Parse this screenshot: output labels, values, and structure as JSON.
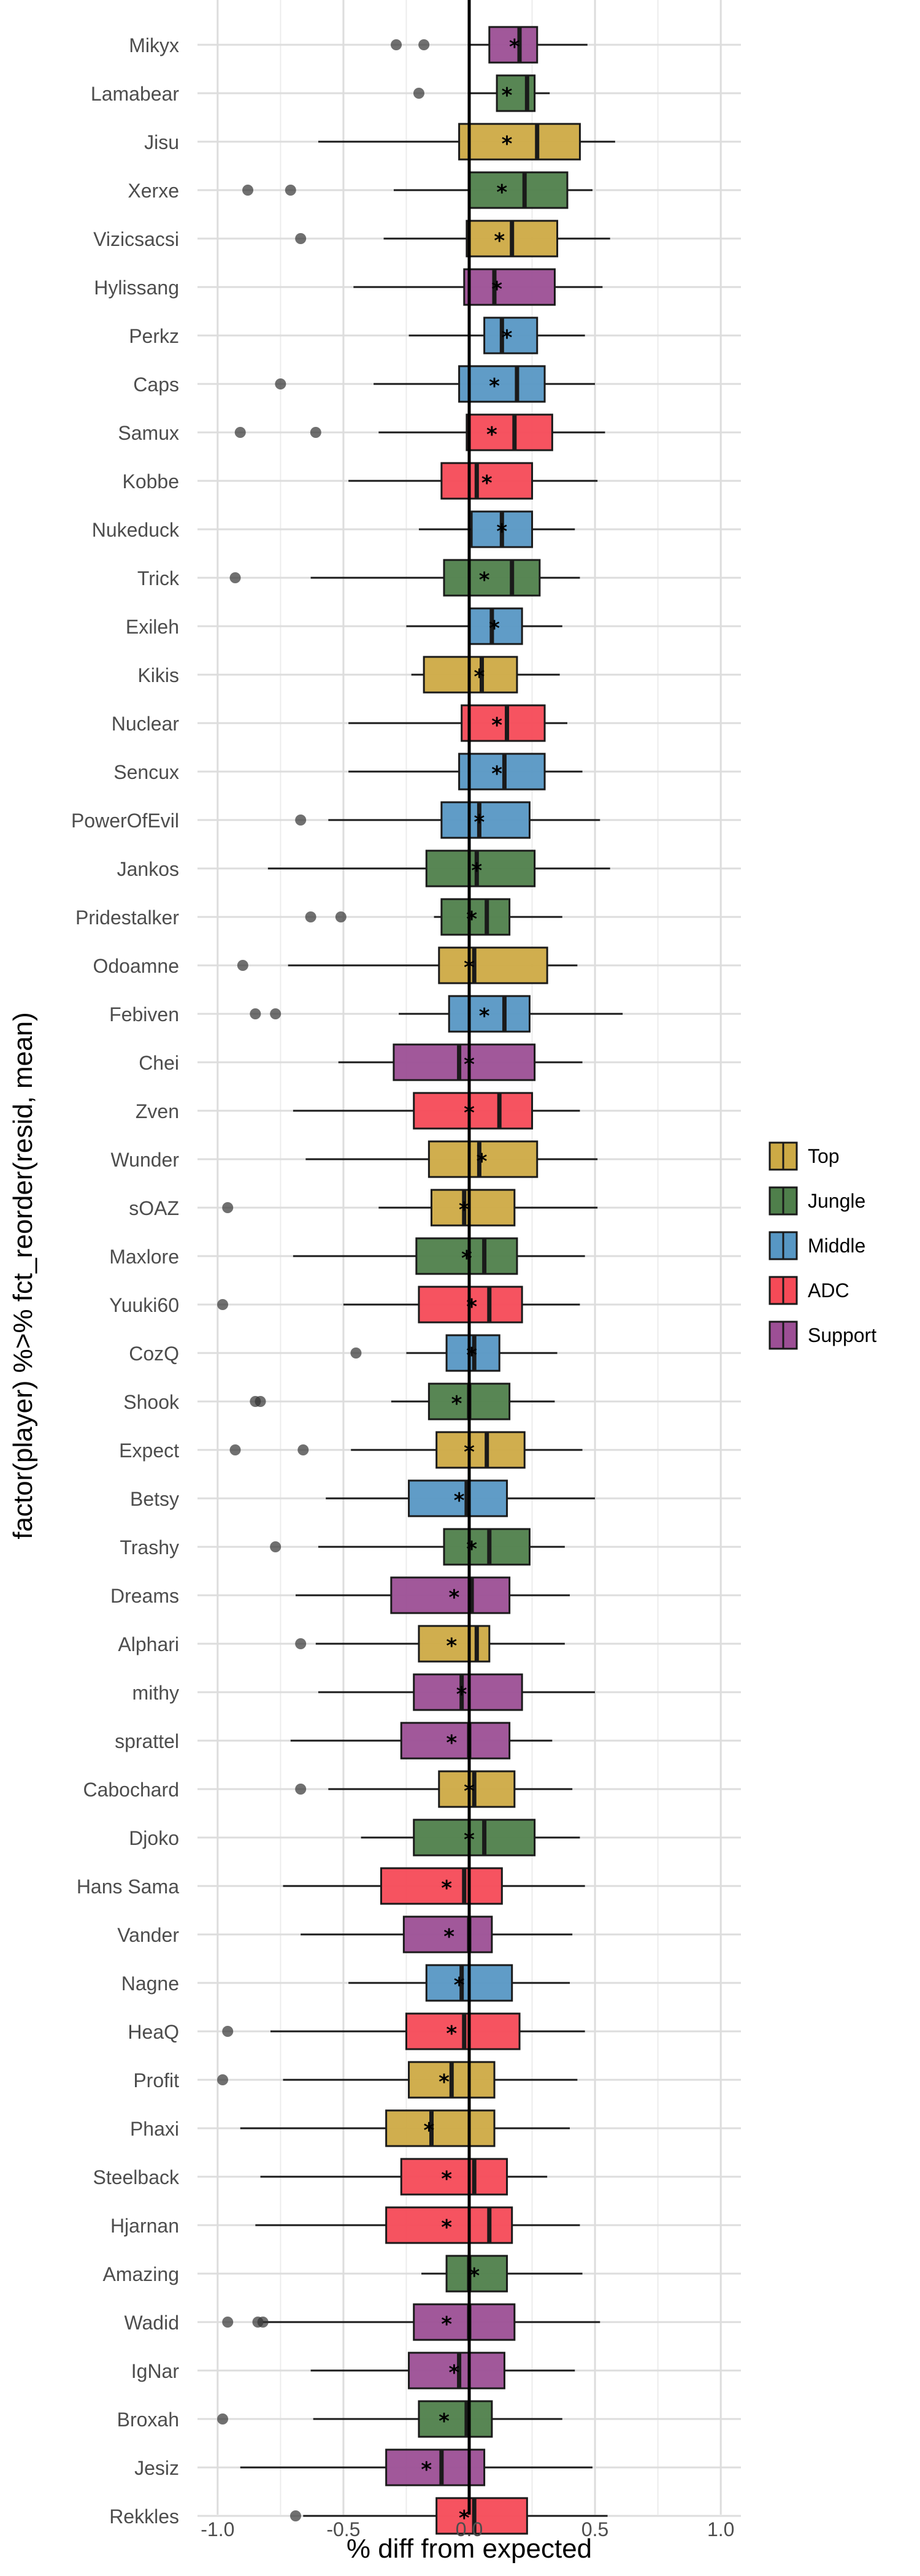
{
  "chart_data": {
    "type": "boxplot",
    "xlabel": "% diff from expected",
    "ylabel": "factor(player) %>% fct_reorder(resid, mean)",
    "xlim": [
      -1.08,
      1.08
    ],
    "x_ticks": [
      -1.0,
      -0.5,
      0.0,
      0.5,
      1.0
    ],
    "x_tick_labels": [
      "-1.0",
      "-0.5",
      "0.0",
      "0.5",
      "1.0"
    ],
    "grid": true,
    "reference_line_x": 0,
    "legend": {
      "placement": "right",
      "entries": [
        "Top",
        "Jungle",
        "Middle",
        "ADC",
        "Support"
      ]
    },
    "colors": {
      "Top": "#CDAA45",
      "Jungle": "#4F7F4B",
      "Middle": "#5797C4",
      "ADC": "#F54A57",
      "Support": "#9C4F95"
    },
    "players": [
      {
        "name": "Mikyx",
        "role": "Support",
        "whisker_low": 0.0,
        "q1": 0.08,
        "median": 0.2,
        "q3": 0.27,
        "whisker_high": 0.47,
        "mean": 0.18,
        "outliers": [
          -0.29,
          -0.18
        ]
      },
      {
        "name": "Lamabear",
        "role": "Jungle",
        "whisker_low": 0.0,
        "q1": 0.11,
        "median": 0.23,
        "q3": 0.26,
        "whisker_high": 0.32,
        "mean": 0.15,
        "outliers": [
          -0.2
        ]
      },
      {
        "name": "Jisu",
        "role": "Top",
        "whisker_low": -0.6,
        "q1": -0.04,
        "median": 0.27,
        "q3": 0.44,
        "whisker_high": 0.58,
        "mean": 0.15,
        "outliers": []
      },
      {
        "name": "Xerxe",
        "role": "Jungle",
        "whisker_low": -0.3,
        "q1": 0.0,
        "median": 0.22,
        "q3": 0.39,
        "whisker_high": 0.49,
        "mean": 0.13,
        "outliers": [
          -0.88,
          -0.71
        ]
      },
      {
        "name": "Vizicsacsi",
        "role": "Top",
        "whisker_low": -0.34,
        "q1": -0.01,
        "median": 0.17,
        "q3": 0.35,
        "whisker_high": 0.56,
        "mean": 0.12,
        "outliers": [
          -0.67
        ]
      },
      {
        "name": "Hylissang",
        "role": "Support",
        "whisker_low": -0.46,
        "q1": -0.02,
        "median": 0.1,
        "q3": 0.34,
        "whisker_high": 0.53,
        "mean": 0.11,
        "outliers": []
      },
      {
        "name": "Perkz",
        "role": "Middle",
        "whisker_low": -0.24,
        "q1": 0.06,
        "median": 0.13,
        "q3": 0.27,
        "whisker_high": 0.46,
        "mean": 0.15,
        "outliers": []
      },
      {
        "name": "Caps",
        "role": "Middle",
        "whisker_low": -0.38,
        "q1": -0.04,
        "median": 0.19,
        "q3": 0.3,
        "whisker_high": 0.5,
        "mean": 0.1,
        "outliers": [
          -0.75
        ]
      },
      {
        "name": "Samux",
        "role": "ADC",
        "whisker_low": -0.36,
        "q1": -0.01,
        "median": 0.18,
        "q3": 0.33,
        "whisker_high": 0.54,
        "mean": 0.09,
        "outliers": [
          -0.91,
          -0.61
        ]
      },
      {
        "name": "Kobbe",
        "role": "ADC",
        "whisker_low": -0.48,
        "q1": -0.11,
        "median": 0.03,
        "q3": 0.25,
        "whisker_high": 0.51,
        "mean": 0.07,
        "outliers": []
      },
      {
        "name": "Nukeduck",
        "role": "Middle",
        "whisker_low": -0.2,
        "q1": 0.01,
        "median": 0.13,
        "q3": 0.25,
        "whisker_high": 0.42,
        "mean": 0.13,
        "outliers": []
      },
      {
        "name": "Trick",
        "role": "Jungle",
        "whisker_low": -0.63,
        "q1": -0.1,
        "median": 0.17,
        "q3": 0.28,
        "whisker_high": 0.44,
        "mean": 0.06,
        "outliers": [
          -0.93
        ]
      },
      {
        "name": "Exileh",
        "role": "Middle",
        "whisker_low": -0.25,
        "q1": 0.0,
        "median": 0.09,
        "q3": 0.21,
        "whisker_high": 0.37,
        "mean": 0.1,
        "outliers": []
      },
      {
        "name": "Kikis",
        "role": "Top",
        "whisker_low": -0.23,
        "q1": -0.18,
        "median": 0.05,
        "q3": 0.19,
        "whisker_high": 0.36,
        "mean": 0.04,
        "outliers": []
      },
      {
        "name": "Nuclear",
        "role": "ADC",
        "whisker_low": -0.48,
        "q1": -0.03,
        "median": 0.15,
        "q3": 0.3,
        "whisker_high": 0.39,
        "mean": 0.11,
        "outliers": []
      },
      {
        "name": "Sencux",
        "role": "Middle",
        "whisker_low": -0.48,
        "q1": -0.04,
        "median": 0.14,
        "q3": 0.3,
        "whisker_high": 0.45,
        "mean": 0.11,
        "outliers": []
      },
      {
        "name": "PowerOfEvil",
        "role": "Middle",
        "whisker_low": -0.56,
        "q1": -0.11,
        "median": 0.04,
        "q3": 0.24,
        "whisker_high": 0.52,
        "mean": 0.04,
        "outliers": [
          -0.67
        ]
      },
      {
        "name": "Jankos",
        "role": "Jungle",
        "whisker_low": -0.8,
        "q1": -0.17,
        "median": 0.03,
        "q3": 0.26,
        "whisker_high": 0.56,
        "mean": 0.03,
        "outliers": []
      },
      {
        "name": "Pridestalker",
        "role": "Jungle",
        "whisker_low": -0.14,
        "q1": -0.11,
        "median": 0.07,
        "q3": 0.16,
        "whisker_high": 0.37,
        "mean": 0.01,
        "outliers": [
          -0.63,
          -0.51
        ]
      },
      {
        "name": "Odoamne",
        "role": "Top",
        "whisker_low": -0.72,
        "q1": -0.12,
        "median": 0.02,
        "q3": 0.31,
        "whisker_high": 0.43,
        "mean": 0.0,
        "outliers": [
          -0.9
        ]
      },
      {
        "name": "Febiven",
        "role": "Middle",
        "whisker_low": -0.28,
        "q1": -0.08,
        "median": 0.14,
        "q3": 0.24,
        "whisker_high": 0.61,
        "mean": 0.06,
        "outliers": [
          -0.85,
          -0.77
        ]
      },
      {
        "name": "Chei",
        "role": "Support",
        "whisker_low": -0.52,
        "q1": -0.3,
        "median": -0.04,
        "q3": 0.26,
        "whisker_high": 0.45,
        "mean": 0.0,
        "outliers": []
      },
      {
        "name": "Zven",
        "role": "ADC",
        "whisker_low": -0.7,
        "q1": -0.22,
        "median": 0.12,
        "q3": 0.25,
        "whisker_high": 0.44,
        "mean": 0.0,
        "outliers": []
      },
      {
        "name": "Wunder",
        "role": "Top",
        "whisker_low": -0.65,
        "q1": -0.16,
        "median": 0.04,
        "q3": 0.27,
        "whisker_high": 0.51,
        "mean": 0.05,
        "outliers": []
      },
      {
        "name": "sOAZ",
        "role": "Top",
        "whisker_low": -0.36,
        "q1": -0.15,
        "median": -0.02,
        "q3": 0.18,
        "whisker_high": 0.51,
        "mean": -0.02,
        "outliers": [
          -0.96
        ]
      },
      {
        "name": "Maxlore",
        "role": "Jungle",
        "whisker_low": -0.7,
        "q1": -0.21,
        "median": 0.06,
        "q3": 0.19,
        "whisker_high": 0.46,
        "mean": -0.01,
        "outliers": []
      },
      {
        "name": "Yuuki60",
        "role": "ADC",
        "whisker_low": -0.5,
        "q1": -0.2,
        "median": 0.08,
        "q3": 0.21,
        "whisker_high": 0.44,
        "mean": 0.01,
        "outliers": [
          -0.98
        ]
      },
      {
        "name": "CozQ",
        "role": "Middle",
        "whisker_low": -0.25,
        "q1": -0.09,
        "median": 0.02,
        "q3": 0.12,
        "whisker_high": 0.35,
        "mean": 0.01,
        "outliers": [
          -0.45
        ]
      },
      {
        "name": "Shook",
        "role": "Jungle",
        "whisker_low": -0.31,
        "q1": -0.16,
        "median": 0.0,
        "q3": 0.16,
        "whisker_high": 0.34,
        "mean": -0.05,
        "outliers": [
          -0.85,
          -0.83
        ]
      },
      {
        "name": "Expect",
        "role": "Top",
        "whisker_low": -0.47,
        "q1": -0.13,
        "median": 0.07,
        "q3": 0.22,
        "whisker_high": 0.45,
        "mean": 0.0,
        "outliers": [
          -0.93,
          -0.66
        ]
      },
      {
        "name": "Betsy",
        "role": "Middle",
        "whisker_low": -0.57,
        "q1": -0.24,
        "median": -0.01,
        "q3": 0.15,
        "whisker_high": 0.5,
        "mean": -0.04,
        "outliers": []
      },
      {
        "name": "Trashy",
        "role": "Jungle",
        "whisker_low": -0.6,
        "q1": -0.1,
        "median": 0.08,
        "q3": 0.24,
        "whisker_high": 0.38,
        "mean": 0.01,
        "outliers": [
          -0.77
        ]
      },
      {
        "name": "Dreams",
        "role": "Support",
        "whisker_low": -0.69,
        "q1": -0.31,
        "median": 0.01,
        "q3": 0.16,
        "whisker_high": 0.4,
        "mean": -0.06,
        "outliers": []
      },
      {
        "name": "Alphari",
        "role": "Top",
        "whisker_low": -0.61,
        "q1": -0.2,
        "median": 0.03,
        "q3": 0.08,
        "whisker_high": 0.38,
        "mean": -0.07,
        "outliers": [
          -0.67
        ]
      },
      {
        "name": "mithy",
        "role": "Support",
        "whisker_low": -0.6,
        "q1": -0.22,
        "median": -0.03,
        "q3": 0.21,
        "whisker_high": 0.5,
        "mean": -0.03,
        "outliers": []
      },
      {
        "name": "sprattel",
        "role": "Support",
        "whisker_low": -0.71,
        "q1": -0.27,
        "median": 0.0,
        "q3": 0.16,
        "whisker_high": 0.33,
        "mean": -0.07,
        "outliers": []
      },
      {
        "name": "Cabochard",
        "role": "Top",
        "whisker_low": -0.56,
        "q1": -0.12,
        "median": 0.02,
        "q3": 0.18,
        "whisker_high": 0.41,
        "mean": 0.0,
        "outliers": [
          -0.67
        ]
      },
      {
        "name": "Djoko",
        "role": "Jungle",
        "whisker_low": -0.43,
        "q1": -0.22,
        "median": 0.06,
        "q3": 0.26,
        "whisker_high": 0.44,
        "mean": 0.0,
        "outliers": []
      },
      {
        "name": "Hans Sama",
        "role": "ADC",
        "whisker_low": -0.74,
        "q1": -0.35,
        "median": -0.02,
        "q3": 0.13,
        "whisker_high": 0.46,
        "mean": -0.09,
        "outliers": []
      },
      {
        "name": "Vander",
        "role": "Support",
        "whisker_low": -0.67,
        "q1": -0.26,
        "median": 0.0,
        "q3": 0.09,
        "whisker_high": 0.41,
        "mean": -0.08,
        "outliers": []
      },
      {
        "name": "Nagne",
        "role": "Middle",
        "whisker_low": -0.48,
        "q1": -0.17,
        "median": -0.03,
        "q3": 0.17,
        "whisker_high": 0.4,
        "mean": -0.04,
        "outliers": []
      },
      {
        "name": "HeaQ",
        "role": "ADC",
        "whisker_low": -0.79,
        "q1": -0.25,
        "median": -0.02,
        "q3": 0.2,
        "whisker_high": 0.46,
        "mean": -0.07,
        "outliers": [
          -0.96
        ]
      },
      {
        "name": "Profit",
        "role": "Top",
        "whisker_low": -0.74,
        "q1": -0.24,
        "median": -0.07,
        "q3": 0.1,
        "whisker_high": 0.43,
        "mean": -0.1,
        "outliers": [
          -0.98
        ]
      },
      {
        "name": "Phaxi",
        "role": "Top",
        "whisker_low": -0.91,
        "q1": -0.33,
        "median": -0.15,
        "q3": 0.1,
        "whisker_high": 0.4,
        "mean": -0.16,
        "outliers": []
      },
      {
        "name": "Steelback",
        "role": "ADC",
        "whisker_low": -0.83,
        "q1": -0.27,
        "median": 0.02,
        "q3": 0.15,
        "whisker_high": 0.31,
        "mean": -0.09,
        "outliers": []
      },
      {
        "name": "Hjarnan",
        "role": "ADC",
        "whisker_low": -0.85,
        "q1": -0.33,
        "median": 0.08,
        "q3": 0.17,
        "whisker_high": 0.44,
        "mean": -0.09,
        "outliers": []
      },
      {
        "name": "Amazing",
        "role": "Jungle",
        "whisker_low": -0.19,
        "q1": -0.09,
        "median": 0.0,
        "q3": 0.15,
        "whisker_high": 0.45,
        "mean": 0.02,
        "outliers": []
      },
      {
        "name": "Wadid",
        "role": "Support",
        "whisker_low": -0.82,
        "q1": -0.22,
        "median": 0.0,
        "q3": 0.18,
        "whisker_high": 0.52,
        "mean": -0.09,
        "outliers": [
          -0.96,
          -0.84,
          -0.82
        ]
      },
      {
        "name": "IgNar",
        "role": "Support",
        "whisker_low": -0.63,
        "q1": -0.24,
        "median": -0.04,
        "q3": 0.14,
        "whisker_high": 0.42,
        "mean": -0.06,
        "outliers": []
      },
      {
        "name": "Broxah",
        "role": "Jungle",
        "whisker_low": -0.62,
        "q1": -0.2,
        "median": -0.01,
        "q3": 0.09,
        "whisker_high": 0.37,
        "mean": -0.1,
        "outliers": [
          -0.98
        ]
      },
      {
        "name": "Jesiz",
        "role": "Support",
        "whisker_low": -0.91,
        "q1": -0.33,
        "median": -0.11,
        "q3": 0.06,
        "whisker_high": 0.49,
        "mean": -0.17,
        "outliers": []
      },
      {
        "name": "Rekkles",
        "role": "ADC",
        "whisker_low": -0.66,
        "q1": -0.13,
        "median": 0.02,
        "q3": 0.23,
        "whisker_high": 0.55,
        "mean": -0.02,
        "outliers": [
          -0.69
        ]
      }
    ]
  }
}
